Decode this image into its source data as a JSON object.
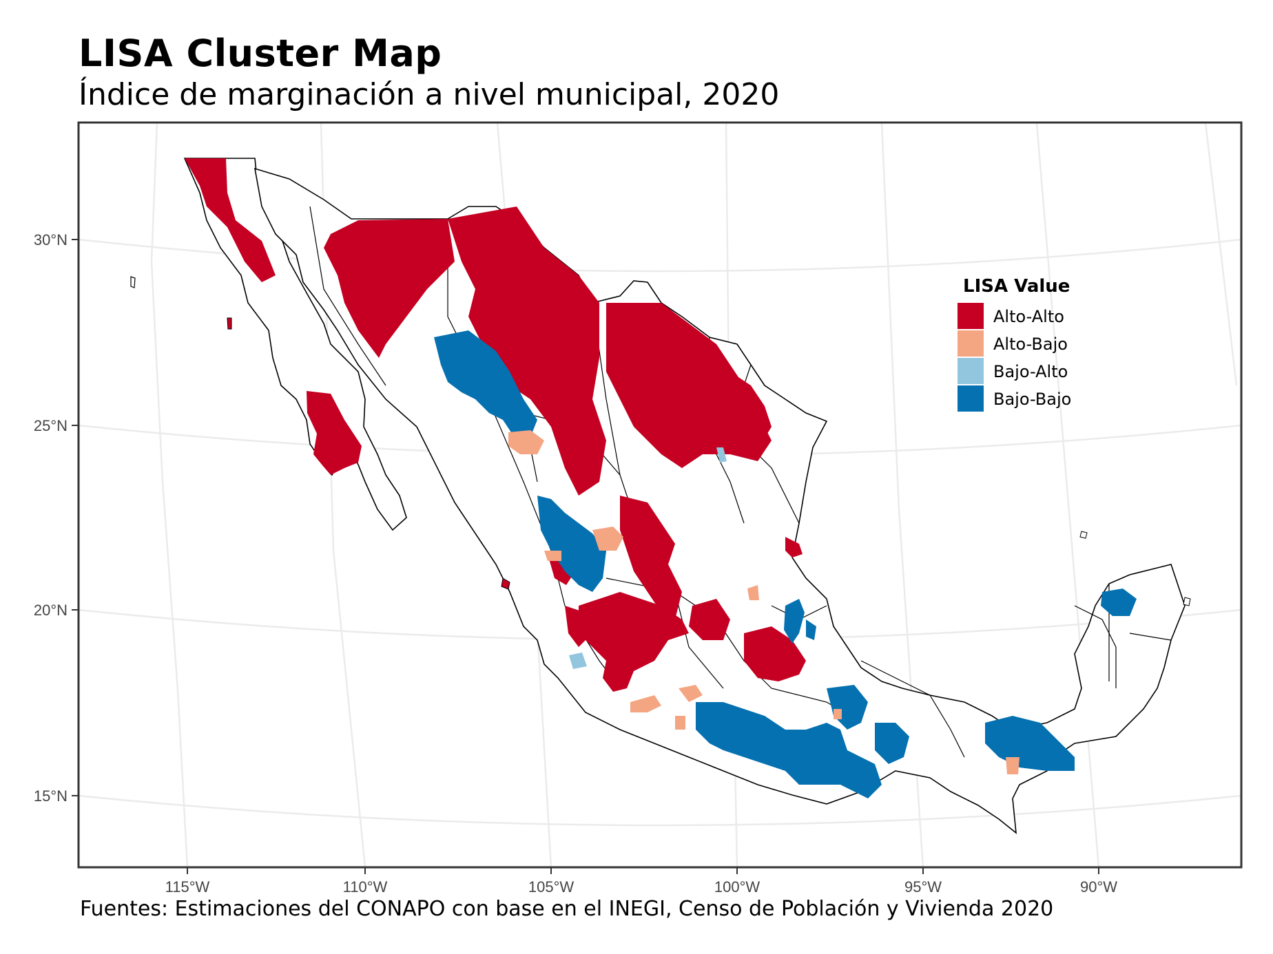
{
  "title": "LISA Cluster Map",
  "subtitle": "Índice de marginación a nivel municipal, 2020",
  "caption": "Fuentes: Estimaciones del CONAPO con base en el INEGI, Censo de Población y Vivienda 2020",
  "axes": {
    "x_ticks": [
      "115°W",
      "110°W",
      "105°W",
      "100°W",
      "95°W",
      "90°W"
    ],
    "y_ticks": [
      "30°N",
      "25°N",
      "20°N",
      "15°N"
    ]
  },
  "legend": {
    "title": "LISA Value",
    "items": [
      {
        "label": "Alto-Alto",
        "color": "#c50022"
      },
      {
        "label": "Alto-Bajo",
        "color": "#f4a582"
      },
      {
        "label": "Bajo-Alto",
        "color": "#92c5de"
      },
      {
        "label": "Bajo-Bajo",
        "color": "#0571b0"
      }
    ]
  },
  "colors": {
    "alto_alto": "#c50022",
    "alto_bajo": "#f4a582",
    "bajo_alto": "#92c5de",
    "bajo_bajo": "#0571b0",
    "no_significativo": "#ffffff",
    "grid": "#ebebeb",
    "border": "#333333"
  }
}
